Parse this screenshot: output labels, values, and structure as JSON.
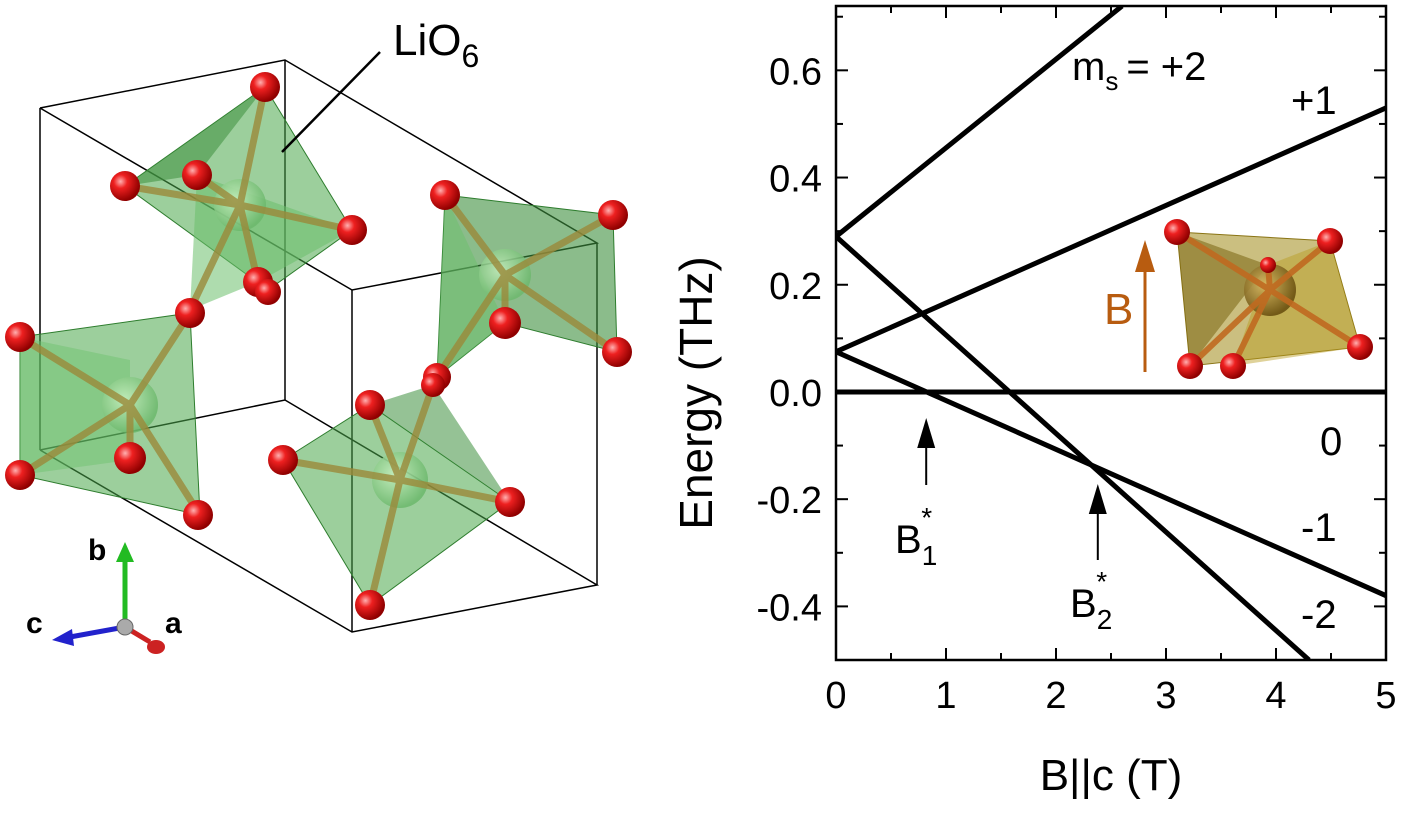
{
  "crystal": {
    "polyhedron_label": "LiO",
    "polyhedron_label_sub": "6",
    "axes": {
      "b": "b",
      "c": "c",
      "a": "a"
    },
    "colors": {
      "polyhedron": "#4aa84a",
      "oxygen": "#e01010",
      "axis_b": "#22bb22",
      "axis_c": "#2222cc",
      "axis_a": "#cc2222"
    }
  },
  "chart_data": {
    "type": "line",
    "xlabel": "B||c (T)",
    "ylabel": "Energy (THz)",
    "xlim": [
      0,
      5
    ],
    "ylim": [
      -0.5,
      0.72
    ],
    "xticks": [
      0,
      1,
      2,
      3,
      4,
      5
    ],
    "yticks": [
      -0.4,
      -0.2,
      0.0,
      0.2,
      0.4,
      0.6
    ],
    "ytick_labels": [
      "-0.4",
      "-0.2",
      "0.0",
      "0.2",
      "0.4",
      "0.6"
    ],
    "series": [
      {
        "name": "+2",
        "x": [
          0,
          2.6
        ],
        "y": [
          0.29,
          0.72
        ]
      },
      {
        "name": "+1",
        "x": [
          0,
          5
        ],
        "y": [
          0.075,
          0.53
        ]
      },
      {
        "name": "0",
        "x": [
          0,
          5
        ],
        "y": [
          0.0,
          0.0
        ]
      },
      {
        "name": "-1",
        "x": [
          0,
          5
        ],
        "y": [
          0.075,
          -0.38
        ]
      },
      {
        "name": "-2",
        "x": [
          0,
          4.3
        ],
        "y": [
          0.29,
          -0.5
        ]
      }
    ],
    "level_labels": [
      {
        "text": "= +2",
        "prefix": "m",
        "sub": "s"
      },
      {
        "text": "+1"
      },
      {
        "text": "0"
      },
      {
        "text": "-1"
      },
      {
        "text": "-2"
      }
    ],
    "annotations": [
      {
        "label": "B",
        "sub": "1",
        "sup": "*",
        "x": 0.82
      },
      {
        "label": "B",
        "sub": "2",
        "sup": "*",
        "x": 2.38
      }
    ],
    "inset": {
      "field_label": "B",
      "colors": {
        "arrow": "#b85c10",
        "polyhedron": "#a08a18",
        "oxygen": "#e01010"
      }
    }
  }
}
